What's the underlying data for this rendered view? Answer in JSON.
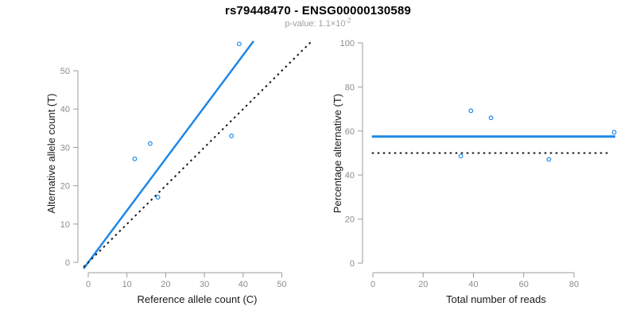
{
  "header": {
    "title": "rs79448470 - ENSG00000130589",
    "subtitle_prefix": "p-value: 1.1×10",
    "subtitle_exponent": "-2"
  },
  "colors": {
    "accent_blue": "#1E88E5",
    "dotted_black": "#1A1A1A",
    "axis_line_gray": "#9B9B9B",
    "tick_label_gray": "#8C8C8C",
    "axis_title_color": "#1A1A1A",
    "subtitle_gray": "#9E9E9E",
    "title_color": "#000000",
    "background": "#FFFFFF"
  },
  "chart_data": [
    {
      "type": "scatter",
      "name": "allele-counts-scatter",
      "title": "",
      "xlabel": "Reference allele count (C)",
      "ylabel": "Alternative allele count (T)",
      "xticks": [
        0,
        10,
        20,
        30,
        40,
        50
      ],
      "yticks": [
        0,
        10,
        20,
        30,
        40,
        50
      ],
      "xlim": [
        -2.5,
        58.6
      ],
      "ylim": [
        -2.7,
        57.7
      ],
      "grid": false,
      "legend": null,
      "points": [
        [
          12,
          27
        ],
        [
          16,
          31
        ],
        [
          18,
          17
        ],
        [
          37,
          33
        ],
        [
          39,
          57
        ]
      ],
      "lines": [
        {
          "name": "fitted-proportion-line",
          "slope": 1.352,
          "intercept": 0,
          "x_range": [
            -1.2,
            42.7
          ],
          "style": "solid",
          "color_key": "accent_blue",
          "width": 2.5
        },
        {
          "name": "identity-line",
          "slope": 1,
          "intercept": 0,
          "x_range": [
            -1.2,
            57.7
          ],
          "style": "dotted",
          "color_key": "dotted_black",
          "width": 2
        }
      ]
    },
    {
      "type": "scatter",
      "name": "percentage-vs-coverage-scatter",
      "title": "",
      "xlabel": "Total number of reads",
      "ylabel": "Percentage alternative (T)",
      "xticks": [
        0,
        20,
        40,
        60,
        80
      ],
      "yticks": [
        0,
        20,
        40,
        60,
        80,
        100
      ],
      "xlim": [
        -4,
        102
      ],
      "ylim": [
        -4.7,
        103.6
      ],
      "grid": false,
      "legend": null,
      "points": [
        [
          35,
          48.6
        ],
        [
          39,
          69.2
        ],
        [
          47,
          66.0
        ],
        [
          70,
          47.1
        ],
        [
          96,
          59.4
        ]
      ],
      "lines": [
        {
          "name": "mean-percentage-line",
          "slope": 0,
          "intercept": 57.5,
          "x_range": [
            -0.4,
            96.4
          ],
          "style": "solid",
          "color_key": "accent_blue",
          "width": 3
        },
        {
          "name": "fifty-percent-line",
          "slope": 0,
          "intercept": 50,
          "x_range": [
            -0.4,
            94.2
          ],
          "style": "dotted",
          "color_key": "dotted_black",
          "width": 2
        }
      ]
    }
  ]
}
